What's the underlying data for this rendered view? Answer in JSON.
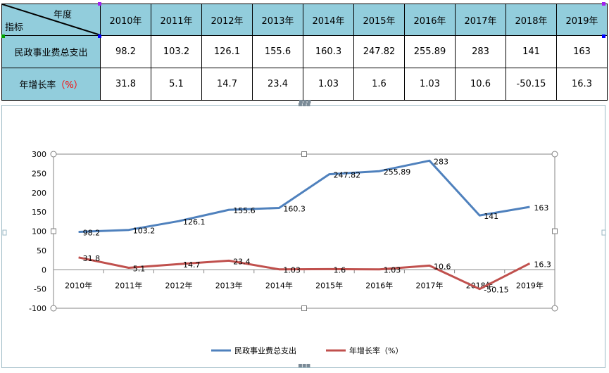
{
  "table": {
    "corner_top": "年度",
    "corner_bottom": "指标",
    "years": [
      "2010年",
      "2011年",
      "2012年",
      "2013年",
      "2014年",
      "2015年",
      "2016年",
      "2017年",
      "2018年",
      "2019年"
    ],
    "rows": [
      {
        "label": "民政事业费总支出",
        "values": [
          "98.2",
          "103.2",
          "126.1",
          "155.6",
          "160.3",
          "247.82",
          "255.89",
          "283",
          "141",
          "163"
        ]
      },
      {
        "label": "年增长率",
        "label_suffix": "（%）",
        "values": [
          "31.8",
          "5.1",
          "14.7",
          "23.4",
          "1.03",
          "1.6",
          "1.03",
          "10.6",
          "-50.15",
          "16.3"
        ]
      }
    ]
  },
  "chart_data": {
    "type": "line",
    "categories": [
      "2010年",
      "2011年",
      "2012年",
      "2013年",
      "2014年",
      "2015年",
      "2016年",
      "2017年",
      "2018年",
      "2019年"
    ],
    "series": [
      {
        "name": "民政事业费总支出",
        "color": "#4f81bd",
        "values": [
          98.2,
          103.2,
          126.1,
          155.6,
          160.3,
          247.82,
          255.89,
          283,
          141,
          163
        ],
        "labels": [
          "98.2",
          "103.2",
          "126.1",
          "155.6",
          "160.3",
          "247.82",
          "255.89",
          "283",
          "141",
          "163"
        ]
      },
      {
        "name": "年增长率（%）",
        "color": "#c0504d",
        "values": [
          31.8,
          5.1,
          14.7,
          23.4,
          1.03,
          1.6,
          1.03,
          10.6,
          -50.15,
          16.3
        ],
        "labels": [
          "31.8",
          "5.1",
          "14.7",
          "23.4",
          "1.03",
          "1.6",
          "1.03",
          "10.6",
          "-50.15",
          "16.3"
        ]
      }
    ],
    "yticks": [
      "300",
      "250",
      "200",
      "150",
      "100",
      "50",
      "0",
      "-50",
      "-100"
    ],
    "ylim": [
      -100,
      300
    ],
    "grid": false,
    "legend_position": "bottom"
  }
}
